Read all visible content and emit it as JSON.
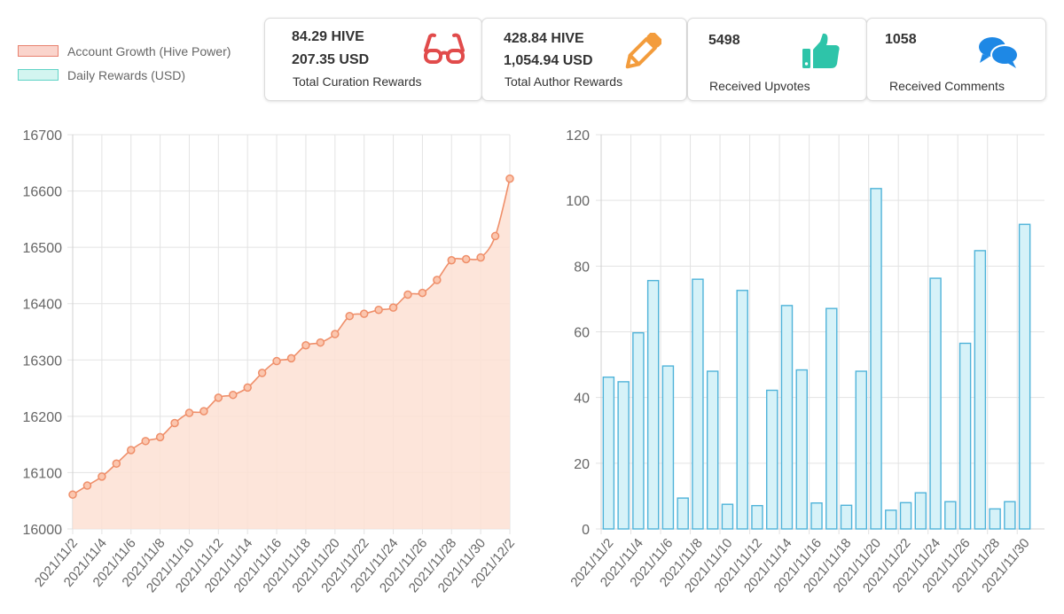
{
  "legend": {
    "items": [
      {
        "label": "Account Growth (Hive Power)",
        "fill": "#fad4cc",
        "border": "#e8816f"
      },
      {
        "label": "Daily Rewards (USD)",
        "fill": "#d3f5f0",
        "border": "#5fd3c6"
      }
    ]
  },
  "cards": {
    "curation": {
      "hive": "84.29 HIVE",
      "usd": "207.35 USD",
      "label": "Total Curation Rewards",
      "icon": "glasses-icon",
      "icon_color": "#e14b4b"
    },
    "author": {
      "hive": "428.84 HIVE",
      "usd": "1,054.94 USD",
      "label": "Total Author Rewards",
      "icon": "pencil-icon",
      "icon_color": "#f39c3c"
    },
    "upvotes": {
      "value": "5498",
      "label": "Received Upvotes",
      "icon": "thumbs-up-icon",
      "icon_color": "#2ec4a9"
    },
    "comments": {
      "value": "1058",
      "label": "Received Comments",
      "icon": "comments-icon",
      "icon_color": "#1e88e5"
    }
  },
  "chart_data": [
    {
      "type": "line",
      "title": "Account Growth (Hive Power)",
      "xlabel": "",
      "ylabel": "",
      "ylim": [
        16000,
        16700
      ],
      "yticks": [
        16000,
        16100,
        16200,
        16300,
        16400,
        16500,
        16600,
        16700
      ],
      "grid": true,
      "line_color": "#ef8f6a",
      "fill_color": "#fde0d3",
      "x": [
        "2021/11/2",
        "2021/11/3",
        "2021/11/4",
        "2021/11/5",
        "2021/11/6",
        "2021/11/7",
        "2021/11/8",
        "2021/11/9",
        "2021/11/10",
        "2021/11/11",
        "2021/11/12",
        "2021/11/13",
        "2021/11/14",
        "2021/11/15",
        "2021/11/16",
        "2021/11/17",
        "2021/11/18",
        "2021/11/19",
        "2021/11/20",
        "2021/11/21",
        "2021/11/22",
        "2021/11/23",
        "2021/11/24",
        "2021/11/25",
        "2021/11/26",
        "2021/11/27",
        "2021/11/28",
        "2021/11/29",
        "2021/11/30",
        "2021/12/1",
        "2021/12/2"
      ],
      "values": [
        16061,
        16077,
        16093,
        16116,
        16140,
        16156,
        16163,
        16188,
        16206,
        16209,
        16233,
        16238,
        16251,
        16277,
        16298,
        16303,
        16326,
        16331,
        16346,
        16378,
        16382,
        16389,
        16393,
        16416,
        16419,
        16442,
        16477,
        16479,
        16482,
        16520,
        16622
      ],
      "tick_labels": [
        "2021/11/2",
        "2021/11/4",
        "2021/11/6",
        "2021/11/8",
        "2021/11/10",
        "2021/11/12",
        "2021/11/14",
        "2021/11/16",
        "2021/11/18",
        "2021/11/20",
        "2021/11/22",
        "2021/11/24",
        "2021/11/26",
        "2021/11/28",
        "2021/11/30",
        "2021/12/2"
      ]
    },
    {
      "type": "bar",
      "title": "Daily Rewards (USD)",
      "xlabel": "",
      "ylabel": "",
      "ylim": [
        0,
        120
      ],
      "yticks": [
        0,
        20,
        40,
        60,
        80,
        100,
        120
      ],
      "grid": true,
      "bar_fill": "#d6f2f8",
      "bar_border": "#4fb3d9",
      "categories": [
        "2021/11/2",
        "2021/11/3",
        "2021/11/4",
        "2021/11/5",
        "2021/11/6",
        "2021/11/7",
        "2021/11/8",
        "2021/11/9",
        "2021/11/10",
        "2021/11/11",
        "2021/11/12",
        "2021/11/13",
        "2021/11/14",
        "2021/11/15",
        "2021/11/16",
        "2021/11/17",
        "2021/11/18",
        "2021/11/19",
        "2021/11/20",
        "2021/11/21",
        "2021/11/22",
        "2021/11/23",
        "2021/11/24",
        "2021/11/25",
        "2021/11/26",
        "2021/11/27",
        "2021/11/28",
        "2021/11/29",
        "2021/11/30"
      ],
      "values": [
        46.2,
        44.8,
        59.7,
        75.6,
        49.6,
        9.4,
        76.0,
        48.0,
        7.5,
        72.6,
        7.1,
        42.2,
        68.0,
        48.4,
        7.9,
        67.1,
        7.2,
        48.0,
        103.6,
        5.7,
        8.0,
        11.0,
        76.3,
        8.3,
        56.5,
        84.7,
        6.1,
        8.3,
        92.7
      ],
      "tick_labels": [
        "2021/11/2",
        "2021/11/4",
        "2021/11/6",
        "2021/11/8",
        "2021/11/10",
        "2021/11/12",
        "2021/11/14",
        "2021/11/16",
        "2021/11/18",
        "2021/11/20",
        "2021/11/22",
        "2021/11/24",
        "2021/11/26",
        "2021/11/28",
        "2021/11/30"
      ]
    }
  ]
}
